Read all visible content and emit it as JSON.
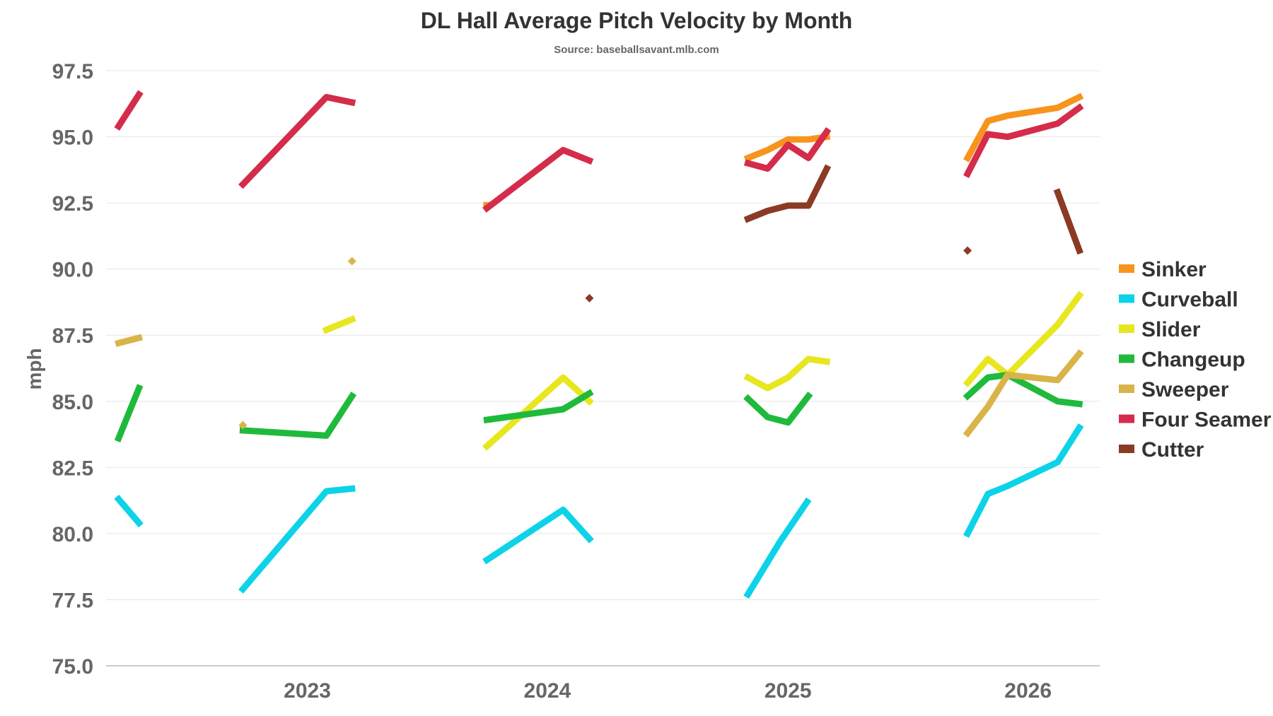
{
  "chart_data": {
    "type": "line",
    "title": "DL Hall Average Pitch Velocity by Month",
    "subtitle": "Source: baseballsavant.mlb.com",
    "xlabel": "",
    "ylabel": "mph",
    "ylim": [
      75.0,
      97.5
    ],
    "y_ticks": [
      "75.0",
      "77.5",
      "80.0",
      "82.5",
      "85.0",
      "87.5",
      "90.0",
      "92.5",
      "95.0",
      "97.5"
    ],
    "x_range": [
      "2022-03-01",
      "2026-04-20"
    ],
    "x_ticks": [
      {
        "date": "2023-01-01",
        "label": "2023"
      },
      {
        "date": "2024-01-01",
        "label": "2024"
      },
      {
        "date": "2025-01-01",
        "label": "2025"
      },
      {
        "date": "2026-01-01",
        "label": "2026"
      }
    ],
    "grid": true,
    "legend_position": "right",
    "series": [
      {
        "name": "Sinker",
        "color": "#f7941d",
        "segments": [
          [
            [
              "2023-10-01",
              92.4
            ]
          ],
          [
            [
              "2024-11-01",
              94.2
            ],
            [
              "2024-12-01",
              94.5
            ],
            [
              "2025-01-01",
              94.9
            ],
            [
              "2025-02-01",
              94.9
            ],
            [
              "2025-03-01",
              95.0
            ]
          ],
          [
            [
              "2025-10-01",
              94.2
            ],
            [
              "2025-11-01",
              95.6
            ],
            [
              "2025-12-01",
              95.8
            ],
            [
              "2026-02-15",
              96.1
            ],
            [
              "2026-03-20",
              96.5
            ]
          ]
        ]
      },
      {
        "name": "Curveball",
        "color": "#0cd3e8",
        "segments": [
          [
            [
              "2022-03-20",
              81.3
            ],
            [
              "2022-04-20",
              80.4
            ]
          ],
          [
            [
              "2022-09-25",
              77.9
            ],
            [
              "2023-01-30",
              81.6
            ],
            [
              "2023-03-10",
              81.7
            ]
          ],
          [
            [
              "2023-10-01",
              79.0
            ],
            [
              "2024-01-25",
              80.9
            ],
            [
              "2024-03-05",
              79.8
            ]
          ],
          [
            [
              "2024-11-01",
              77.7
            ],
            [
              "2024-12-20",
              79.7
            ],
            [
              "2025-01-30",
              81.2
            ]
          ],
          [
            [
              "2025-10-01",
              80.0
            ],
            [
              "2025-11-01",
              81.5
            ],
            [
              "2025-12-01",
              81.8
            ],
            [
              "2026-02-15",
              82.7
            ],
            [
              "2026-03-20",
              84.0
            ]
          ]
        ]
      },
      {
        "name": "Slider",
        "color": "#e8e61f",
        "segments": [
          [
            [
              "2023-01-30",
              87.7
            ],
            [
              "2023-03-10",
              88.1
            ]
          ],
          [
            [
              "2023-10-01",
              83.3
            ],
            [
              "2024-01-25",
              85.9
            ],
            [
              "2024-03-05",
              85.0
            ]
          ],
          [
            [
              "2024-11-01",
              85.9
            ],
            [
              "2024-12-01",
              85.5
            ],
            [
              "2025-01-01",
              85.9
            ],
            [
              "2025-02-01",
              86.6
            ],
            [
              "2025-03-01",
              86.5
            ]
          ],
          [
            [
              "2025-10-01",
              85.7
            ],
            [
              "2025-11-01",
              86.6
            ],
            [
              "2025-12-01",
              86.0
            ],
            [
              "2026-02-15",
              87.9
            ],
            [
              "2026-03-20",
              89.0
            ]
          ]
        ]
      },
      {
        "name": "Changeup",
        "color": "#1fba3c",
        "segments": [
          [
            [
              "2022-03-20",
              83.6
            ],
            [
              "2022-04-20",
              85.5
            ]
          ],
          [
            [
              "2022-09-25",
              83.9
            ],
            [
              "2023-01-30",
              83.7
            ],
            [
              "2023-03-10",
              85.2
            ]
          ],
          [
            [
              "2023-10-01",
              84.3
            ],
            [
              "2024-01-25",
              84.7
            ],
            [
              "2024-03-05",
              85.3
            ]
          ],
          [
            [
              "2024-11-01",
              85.1
            ],
            [
              "2024-12-01",
              84.4
            ],
            [
              "2025-01-01",
              84.2
            ],
            [
              "2025-02-01",
              85.2
            ]
          ],
          [
            [
              "2025-10-01",
              85.2
            ],
            [
              "2025-11-01",
              85.9
            ],
            [
              "2025-12-01",
              86.0
            ],
            [
              "2026-02-15",
              85.0
            ],
            [
              "2026-03-20",
              84.9
            ]
          ]
        ]
      },
      {
        "name": "Sweeper",
        "color": "#d9b448",
        "segments": [
          [
            [
              "2022-03-20",
              87.2
            ],
            [
              "2022-04-20",
              87.4
            ]
          ],
          [
            [
              "2025-10-01",
              83.8
            ],
            [
              "2025-11-01",
              84.8
            ],
            [
              "2025-12-01",
              86.0
            ],
            [
              "2026-02-15",
              85.8
            ],
            [
              "2026-03-20",
              86.8
            ]
          ]
        ],
        "markers": [
          {
            "date": "2022-09-25",
            "value": 84.1
          },
          {
            "date": "2023-03-10",
            "value": 90.3
          }
        ]
      },
      {
        "name": "Four Seamer",
        "color": "#d42c4a",
        "segments": [
          [
            [
              "2022-03-20",
              95.4
            ],
            [
              "2022-04-20",
              96.6
            ]
          ],
          [
            [
              "2022-09-25",
              93.2
            ],
            [
              "2023-01-30",
              96.5
            ],
            [
              "2023-03-10",
              96.3
            ]
          ],
          [
            [
              "2023-10-01",
              92.3
            ],
            [
              "2024-01-25",
              94.5
            ],
            [
              "2024-03-05",
              94.1
            ]
          ],
          [
            [
              "2024-11-01",
              94.0
            ],
            [
              "2024-12-01",
              93.8
            ],
            [
              "2025-01-01",
              94.7
            ],
            [
              "2025-02-01",
              94.2
            ],
            [
              "2025-03-01",
              95.2
            ]
          ],
          [
            [
              "2025-10-01",
              93.6
            ],
            [
              "2025-11-01",
              95.1
            ],
            [
              "2025-12-01",
              95.0
            ],
            [
              "2026-02-15",
              95.5
            ],
            [
              "2026-03-20",
              96.1
            ]
          ]
        ]
      },
      {
        "name": "Cutter",
        "color": "#8b3a24",
        "segments": [
          [
            [
              "2024-11-01",
              91.9
            ],
            [
              "2024-12-01",
              92.2
            ],
            [
              "2025-01-01",
              92.4
            ],
            [
              "2025-02-01",
              92.4
            ],
            [
              "2025-03-01",
              93.8
            ]
          ],
          [
            [
              "2026-02-15",
              92.9
            ],
            [
              "2026-03-20",
              90.7
            ]
          ]
        ],
        "markers": [
          {
            "date": "2024-03-05",
            "value": 88.9
          },
          {
            "date": "2025-10-01",
            "value": 90.7
          }
        ]
      }
    ]
  }
}
